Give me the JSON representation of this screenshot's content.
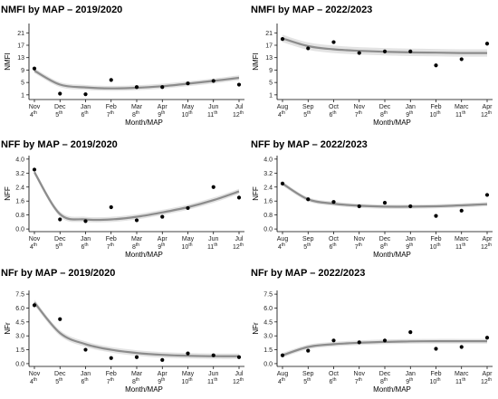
{
  "chart_data": [
    {
      "type": "line",
      "title": "NMFI by MAP – 2019/2020",
      "xlabel": "Month/MAP",
      "ylabel": "NMFI",
      "categories": [
        {
          "month": "Nov",
          "map": "4",
          "sup": "th"
        },
        {
          "month": "Dec",
          "map": "5",
          "sup": "th"
        },
        {
          "month": "Jan",
          "map": "6",
          "sup": "th"
        },
        {
          "month": "Feb",
          "map": "7",
          "sup": "th"
        },
        {
          "month": "Mar",
          "map": "8",
          "sup": "th"
        },
        {
          "month": "Apr",
          "map": "9",
          "sup": "th"
        },
        {
          "month": "May",
          "map": "10",
          "sup": "th"
        },
        {
          "month": "Jun",
          "map": "11",
          "sup": "th"
        },
        {
          "month": "Jul",
          "map": "12",
          "sup": "th"
        }
      ],
      "yticks": [
        1,
        5,
        9,
        13,
        17,
        21
      ],
      "ylim": [
        -0.5,
        24
      ],
      "observed": [
        9.5,
        1.4,
        1.2,
        5.8,
        3.5,
        3.5,
        4.7,
        5.5,
        4.3
      ],
      "fitted": [
        8.8,
        4.3,
        3.4,
        3.1,
        3.3,
        3.8,
        4.6,
        5.5,
        6.5
      ],
      "band": 0.8
    },
    {
      "type": "line",
      "title": "NMFI by MAP – 2022/2023",
      "xlabel": "Month/MAP",
      "ylabel": "NMFI",
      "categories": [
        {
          "month": "Aug",
          "map": "4",
          "sup": "th"
        },
        {
          "month": "Sep",
          "map": "5",
          "sup": "th"
        },
        {
          "month": "Oct",
          "map": "6",
          "sup": "th"
        },
        {
          "month": "Nov",
          "map": "7",
          "sup": "th"
        },
        {
          "month": "Dec",
          "map": "8",
          "sup": "th"
        },
        {
          "month": "Jan",
          "map": "9",
          "sup": "th"
        },
        {
          "month": "Feb",
          "map": "10",
          "sup": "th"
        },
        {
          "month": "Marc",
          "map": "11",
          "sup": "th"
        },
        {
          "month": "Apr",
          "map": "12",
          "sup": "th"
        }
      ],
      "yticks": [
        1,
        5,
        9,
        13,
        17,
        21
      ],
      "ylim": [
        -0.5,
        24
      ],
      "observed": [
        19.0,
        16.0,
        18.0,
        14.5,
        15.0,
        15.0,
        10.5,
        12.5,
        17.5
      ],
      "fitted": [
        19.2,
        16.7,
        15.7,
        15.2,
        14.9,
        14.7,
        14.6,
        14.5,
        14.5
      ],
      "band": 1.2
    },
    {
      "type": "line",
      "title": "NFF by MAP – 2019/2020",
      "xlabel": "Month/MAP",
      "ylabel": "NFF",
      "categories": [
        {
          "month": "Nov",
          "map": "4",
          "sup": "th"
        },
        {
          "month": "Dec",
          "map": "5",
          "sup": "th"
        },
        {
          "month": "Jan",
          "map": "6",
          "sup": "th"
        },
        {
          "month": "Feb",
          "map": "7",
          "sup": "th"
        },
        {
          "month": "Mar",
          "map": "8",
          "sup": "th"
        },
        {
          "month": "Apr",
          "map": "9",
          "sup": "th"
        },
        {
          "month": "May",
          "map": "10",
          "sup": "th"
        },
        {
          "month": "Jun",
          "map": "11",
          "sup": "th"
        },
        {
          "month": "Jul",
          "map": "12",
          "sup": "th"
        }
      ],
      "yticks": [
        "0.0",
        "0.8",
        "1.6",
        "2.4",
        "3.2",
        "4.0"
      ],
      "ylim": [
        -0.15,
        4.2
      ],
      "observed": [
        3.4,
        0.55,
        0.45,
        1.25,
        0.5,
        0.7,
        1.2,
        2.4,
        1.8
      ],
      "fitted": [
        3.25,
        0.85,
        0.55,
        0.55,
        0.7,
        0.95,
        1.25,
        1.65,
        2.15
      ],
      "band": 0.15
    },
    {
      "type": "line",
      "title": "NFF by MAP – 2022/2023",
      "xlabel": "Month/MAP",
      "ylabel": "NFF",
      "categories": [
        {
          "month": "Aug",
          "map": "4",
          "sup": "th"
        },
        {
          "month": "Sep",
          "map": "5",
          "sup": "th"
        },
        {
          "month": "Oct",
          "map": "6",
          "sup": "th"
        },
        {
          "month": "Nov",
          "map": "7",
          "sup": "th"
        },
        {
          "month": "Dec",
          "map": "8",
          "sup": "th"
        },
        {
          "month": "Jan",
          "map": "9",
          "sup": "th"
        },
        {
          "month": "Feb",
          "map": "10",
          "sup": "th"
        },
        {
          "month": "Marc",
          "map": "11",
          "sup": "th"
        },
        {
          "month": "Apr",
          "map": "12",
          "sup": "th"
        }
      ],
      "yticks": [
        "0.0",
        "0.8",
        "1.6",
        "2.4",
        "3.2",
        "4.0"
      ],
      "ylim": [
        -0.15,
        4.2
      ],
      "observed": [
        2.6,
        1.7,
        1.55,
        1.3,
        1.5,
        1.3,
        0.75,
        1.05,
        1.95
      ],
      "fitted": [
        2.6,
        1.7,
        1.45,
        1.33,
        1.28,
        1.28,
        1.3,
        1.35,
        1.42
      ],
      "band": 0.12
    },
    {
      "type": "line",
      "title": "NFr by MAP – 2019/2020",
      "xlabel": "Month/MAP",
      "ylabel": "NFr",
      "categories": [
        {
          "month": "Nov",
          "map": "4",
          "sup": "th"
        },
        {
          "month": "Dec",
          "map": "5",
          "sup": "th"
        },
        {
          "month": "Jan",
          "map": "6",
          "sup": "th"
        },
        {
          "month": "Feb",
          "map": "7",
          "sup": "th"
        },
        {
          "month": "Mar",
          "map": "8",
          "sup": "th"
        },
        {
          "month": "Apr",
          "map": "9",
          "sup": "th"
        },
        {
          "month": "May",
          "map": "10",
          "sup": "th"
        },
        {
          "month": "Jun",
          "map": "11",
          "sup": "th"
        },
        {
          "month": "Jul",
          "map": "12",
          "sup": "th"
        }
      ],
      "yticks": [
        "0.0",
        "1.5",
        "3.0",
        "4.5",
        "6.0",
        "7.5"
      ],
      "ylim": [
        -0.3,
        7.9
      ],
      "observed": [
        6.3,
        4.8,
        1.5,
        0.6,
        0.7,
        0.4,
        1.1,
        0.9,
        0.7
      ],
      "fitted": [
        6.6,
        3.3,
        2.1,
        1.5,
        1.15,
        0.95,
        0.85,
        0.8,
        0.8
      ],
      "band": 0.3
    },
    {
      "type": "line",
      "title": "NFr by MAP – 2022/2023",
      "xlabel": "Month/MAP",
      "ylabel": "NFr",
      "categories": [
        {
          "month": "Aug",
          "map": "4",
          "sup": "th"
        },
        {
          "month": "Sep",
          "map": "5",
          "sup": "th"
        },
        {
          "month": "Oct",
          "map": "6",
          "sup": "th"
        },
        {
          "month": "Nov",
          "map": "7",
          "sup": "th"
        },
        {
          "month": "Dec",
          "map": "8",
          "sup": "th"
        },
        {
          "month": "Jan",
          "map": "9",
          "sup": "th"
        },
        {
          "month": "Feb",
          "map": "10",
          "sup": "th"
        },
        {
          "month": "Marc",
          "map": "11",
          "sup": "th"
        },
        {
          "month": "Apr",
          "map": "12",
          "sup": "th"
        }
      ],
      "yticks": [
        "0.0",
        "1.5",
        "3.0",
        "4.5",
        "6.0",
        "7.5"
      ],
      "ylim": [
        -0.3,
        7.9
      ],
      "observed": [
        0.9,
        1.4,
        2.5,
        2.3,
        2.5,
        3.4,
        1.6,
        1.8,
        2.8
      ],
      "fitted": [
        0.9,
        1.8,
        2.1,
        2.25,
        2.35,
        2.4,
        2.42,
        2.42,
        2.42
      ],
      "band": 0.25
    }
  ]
}
